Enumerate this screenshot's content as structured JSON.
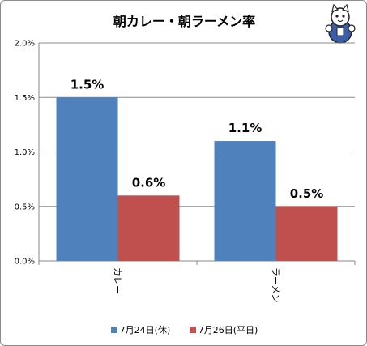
{
  "chart_data": {
    "type": "bar",
    "title": "朝カレー・朝ラーメン率",
    "categories": [
      "カレー",
      "ラーメン"
    ],
    "series": [
      {
        "name": "7月24日(休)",
        "values": [
          1.5,
          1.1
        ],
        "labels": [
          "1.5%",
          "1.1%"
        ],
        "color": "#4f81bd"
      },
      {
        "name": "7月26日(平日)",
        "values": [
          0.6,
          0.5
        ],
        "labels": [
          "0.6%",
          "0.5%"
        ],
        "color": "#c0504d"
      }
    ],
    "ylim": [
      0,
      2.0
    ],
    "yticks": [
      "0.0%",
      "0.5%",
      "1.0%",
      "1.5%",
      "2.0%"
    ],
    "xlabel": "",
    "ylabel": "",
    "grid": true,
    "legend": "bottom"
  },
  "mascot": {
    "icon": "cat-mascot-icon"
  }
}
